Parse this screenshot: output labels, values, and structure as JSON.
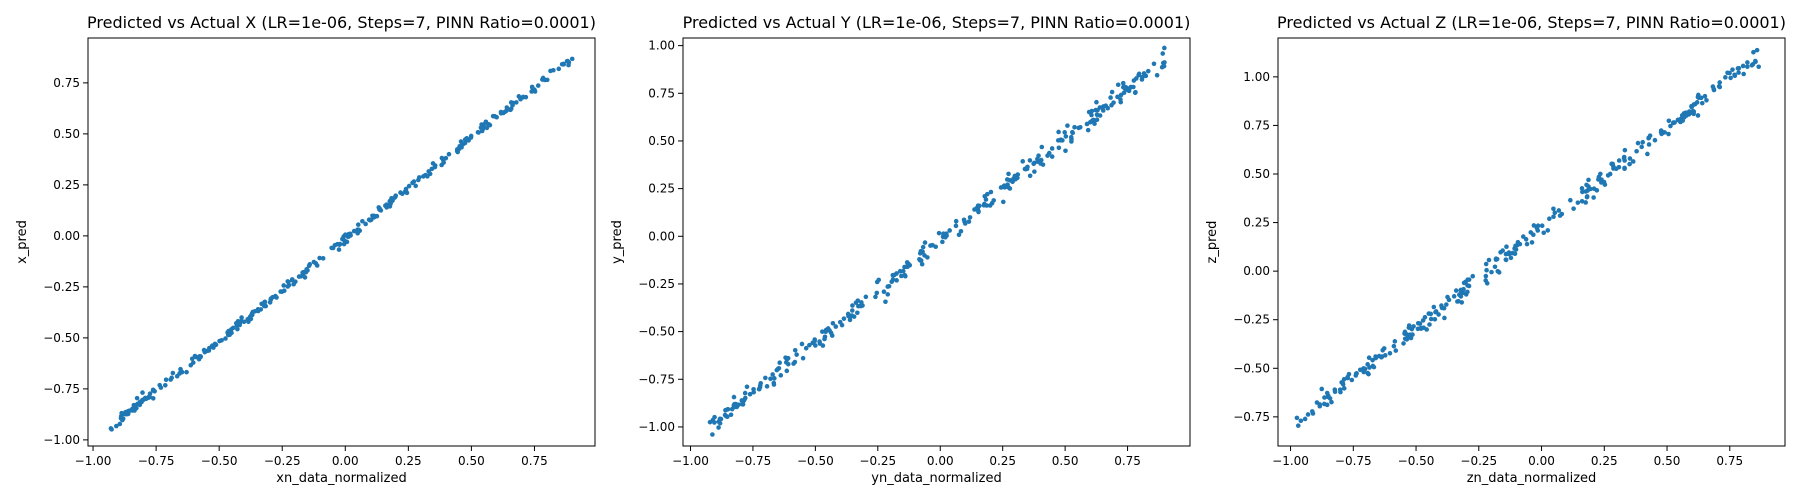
{
  "figure": {
    "background": "#ffffff",
    "point_color": "#1f77b4"
  },
  "chart_data": [
    {
      "type": "scatter",
      "title": "Predicted vs Actual X (LR=1e-06, Steps=7, PINN Ratio=0.0001)",
      "xlabel": "xn_data_normalized",
      "ylabel": "x_pred",
      "xlim": [
        -1.02,
        0.99
      ],
      "ylim": [
        -1.03,
        0.97
      ],
      "xticks": [
        -1.0,
        -0.75,
        -0.5,
        -0.25,
        0.0,
        0.25,
        0.5,
        0.75
      ],
      "yticks": [
        -1.0,
        -0.75,
        -0.5,
        -0.25,
        0.0,
        0.25,
        0.5,
        0.75
      ],
      "xtick_labels": [
        "−1.00",
        "−0.75",
        "−0.50",
        "−0.25",
        "0.00",
        "0.25",
        "0.50",
        "0.75"
      ],
      "ytick_labels": [
        "−1.00",
        "−0.75",
        "−0.50",
        "−0.25",
        "0.00",
        "0.25",
        "0.50",
        "0.75"
      ],
      "x_range": [
        -0.93,
        0.9
      ],
      "slope": 0.99,
      "intercept": -0.015,
      "noise": 0.012,
      "n_points": 300,
      "seed": 11
    },
    {
      "type": "scatter",
      "title": "Predicted vs Actual Y (LR=1e-06, Steps=7, PINN Ratio=0.0001)",
      "xlabel": "yn_data_normalized",
      "ylabel": "y_pred",
      "xlim": [
        -1.03,
        1.0
      ],
      "ylim": [
        -1.1,
        1.04
      ],
      "xticks": [
        -1.0,
        -0.75,
        -0.5,
        -0.25,
        0.0,
        0.25,
        0.5,
        0.75
      ],
      "yticks": [
        -1.0,
        -0.75,
        -0.5,
        -0.25,
        0.0,
        0.25,
        0.5,
        0.75,
        1.0
      ],
      "xtick_labels": [
        "−1.00",
        "−0.75",
        "−0.50",
        "−0.25",
        "0.00",
        "0.25",
        "0.50",
        "0.75"
      ],
      "ytick_labels": [
        "−1.00",
        "−0.75",
        "−0.50",
        "−0.25",
        "0.00",
        "0.25",
        "0.50",
        "0.75",
        "1.00"
      ],
      "x_range": [
        -0.93,
        0.9
      ],
      "slope": 1.06,
      "intercept": -0.02,
      "noise": 0.025,
      "n_points": 300,
      "seed": 23
    },
    {
      "type": "scatter",
      "title": "Predicted vs Actual Z (LR=1e-06, Steps=7, PINN Ratio=0.0001)",
      "xlabel": "zn_data_normalized",
      "ylabel": "z_pred",
      "xlim": [
        -1.05,
        0.97
      ],
      "ylim": [
        -0.9,
        1.2
      ],
      "xticks": [
        -1.0,
        -0.75,
        -0.5,
        -0.25,
        0.0,
        0.25,
        0.5,
        0.75
      ],
      "yticks": [
        -0.75,
        -0.5,
        -0.25,
        0.0,
        0.25,
        0.5,
        0.75,
        1.0
      ],
      "xtick_labels": [
        "−1.00",
        "−0.75",
        "−0.50",
        "−0.25",
        "0.00",
        "0.25",
        "0.50",
        "0.75"
      ],
      "ytick_labels": [
        "−0.75",
        "−0.50",
        "−0.25",
        "0.00",
        "0.25",
        "0.50",
        "0.75",
        "1.00"
      ],
      "x_range": [
        -0.98,
        0.87
      ],
      "slope": 1.03,
      "intercept": 0.22,
      "noise": 0.025,
      "n_points": 300,
      "seed": 37
    }
  ]
}
